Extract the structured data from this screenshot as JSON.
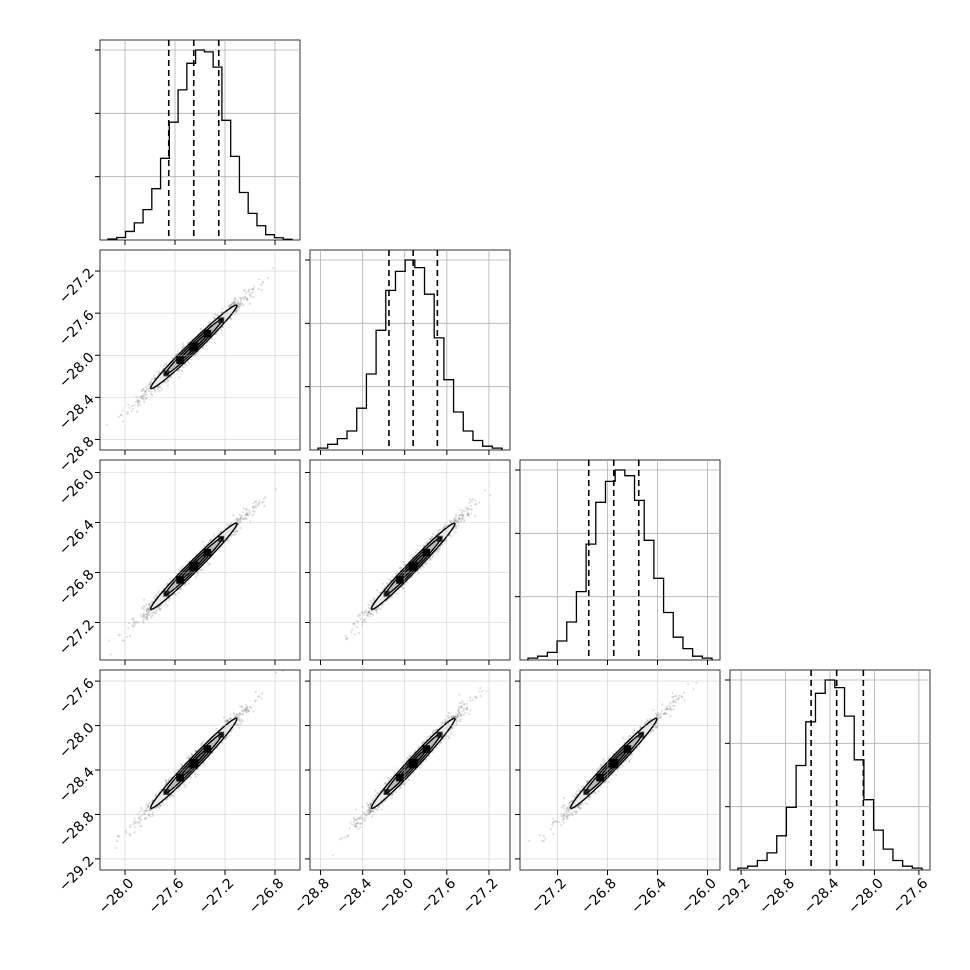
{
  "figure": {
    "type": "corner_plot",
    "ndim": 4
  },
  "chart_data": {
    "type": "scatter",
    "title": "",
    "parameters": [
      {
        "index": 0,
        "range": [
          -28.2,
          -26.6
        ],
        "ticks": [
          -28.0,
          -27.6,
          -27.2,
          -26.8
        ],
        "tick_labels": [
          "−28.0",
          "−27.6",
          "−27.2",
          "−26.8"
        ],
        "quantiles": [
          -27.65,
          -27.45,
          -27.25
        ],
        "histogram": [
          0.005,
          0.013,
          0.045,
          0.09,
          0.16,
          0.27,
          0.43,
          0.62,
          0.79,
          0.93,
          1.0,
          0.99,
          0.91,
          0.63,
          0.44,
          0.25,
          0.14,
          0.075,
          0.028,
          0.012,
          0.004
        ]
      },
      {
        "index": 1,
        "range": [
          -28.9,
          -27.0
        ],
        "ticks": [
          -28.8,
          -28.4,
          -28.0,
          -27.6,
          -27.2
        ],
        "tick_labels": [
          "−28.8",
          "−28.4",
          "−28.0",
          "−27.6",
          "−27.2"
        ],
        "quantiles": [
          -28.15,
          -27.92,
          -27.69
        ],
        "histogram": [
          0.01,
          0.03,
          0.06,
          0.1,
          0.22,
          0.4,
          0.63,
          0.84,
          0.94,
          1.0,
          0.96,
          0.82,
          0.59,
          0.37,
          0.2,
          0.1,
          0.05,
          0.02,
          0.01
        ]
      },
      {
        "index": 2,
        "range": [
          -27.5,
          -25.9
        ],
        "ticks": [
          -27.2,
          -26.8,
          -26.4,
          -26.0
        ],
        "tick_labels": [
          "−27.2",
          "−26.8",
          "−26.4",
          "−26.0"
        ],
        "quantiles": [
          -26.95,
          -26.75,
          -26.55
        ],
        "histogram": [
          0.01,
          0.02,
          0.04,
          0.1,
          0.2,
          0.36,
          0.61,
          0.83,
          0.94,
          1.0,
          0.97,
          0.84,
          0.63,
          0.43,
          0.25,
          0.12,
          0.06,
          0.02,
          0.01
        ]
      },
      {
        "index": 3,
        "range": [
          -29.3,
          -27.5
        ],
        "ticks": [
          -29.2,
          -28.8,
          -28.4,
          -28.0,
          -27.6
        ],
        "tick_labels": [
          "−29.2",
          "−28.8",
          "−28.4",
          "−28.0",
          "−27.6"
        ],
        "quantiles": [
          -28.57,
          -28.34,
          -28.1
        ],
        "histogram": [
          0.01,
          0.02,
          0.05,
          0.09,
          0.18,
          0.33,
          0.55,
          0.78,
          0.93,
          1.0,
          0.96,
          0.81,
          0.58,
          0.37,
          0.21,
          0.11,
          0.05,
          0.02,
          0.01
        ]
      }
    ],
    "contour_levels": [
      0.5,
      1.0,
      1.5
    ],
    "grid": true,
    "legend": "none",
    "colors": {
      "line": "#000000",
      "scatter": "#6e6e6e",
      "grid": "#b0b0b0"
    }
  }
}
